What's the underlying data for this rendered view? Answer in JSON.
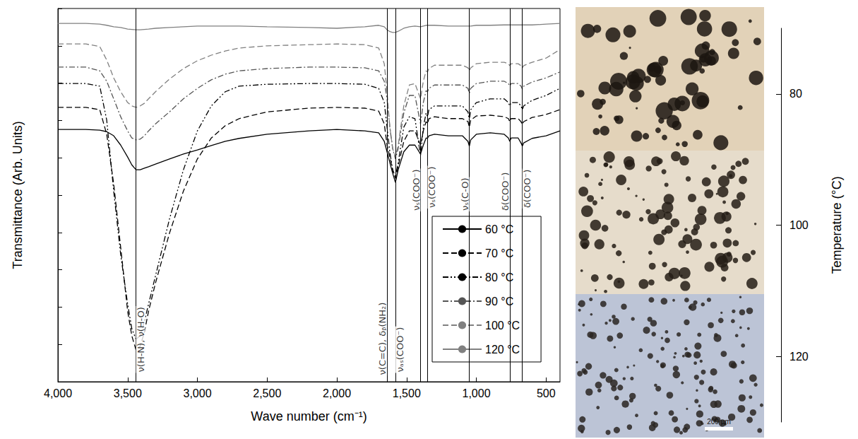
{
  "chart_data": [
    {
      "type": "line",
      "xlabel": "Wave number (cm⁻¹)",
      "ylabel": "Transmittance (Arb. Units)",
      "xlim": [
        4000,
        400
      ],
      "xticks": [
        4000,
        3500,
        3000,
        2500,
        2000,
        1500,
        1000,
        500
      ],
      "ylim": [
        0,
        100
      ],
      "yticks": [
        0,
        10,
        20,
        30,
        40,
        50,
        60,
        70,
        80,
        90,
        100
      ],
      "tick_labels": "x",
      "grid": false,
      "legend": "lower right",
      "x": [
        4000,
        3800,
        3700,
        3650,
        3600,
        3550,
        3500,
        3470,
        3440,
        3410,
        3380,
        3350,
        3300,
        3200,
        3100,
        3000,
        2900,
        2800,
        2700,
        2500,
        2200,
        2000,
        1800,
        1700,
        1660,
        1640,
        1620,
        1600,
        1580,
        1560,
        1520,
        1480,
        1440,
        1400,
        1380,
        1360,
        1350,
        1340,
        1300,
        1200,
        1100,
        1060,
        1050,
        1040,
        1000,
        900,
        800,
        770,
        760,
        750,
        700,
        680,
        670,
        660,
        600,
        500,
        400
      ],
      "series": [
        {
          "name": "60 °C",
          "color": "#000000",
          "line_style": "solid",
          "values": [
            67.6,
            67.6,
            67.4,
            67.0,
            65.9,
            63.4,
            60.2,
            58.1,
            56.8,
            56.8,
            57.2,
            57.6,
            58.3,
            59.7,
            61.0,
            62.1,
            63.3,
            64.4,
            65.2,
            66.3,
            67.2,
            67.6,
            67.2,
            66.7,
            64.4,
            61.6,
            58.7,
            55.9,
            53.4,
            56.8,
            61.6,
            63.4,
            63.4,
            61.0,
            63.4,
            65.3,
            65.2,
            65.9,
            66.3,
            65.9,
            65.9,
            64.4,
            63.1,
            64.8,
            66.3,
            66.7,
            66.3,
            65.3,
            64.4,
            65.3,
            65.3,
            64.0,
            63.1,
            64.0,
            65.2,
            65.9,
            67.2
          ]
        },
        {
          "name": "70 °C",
          "color": "#000000",
          "line_style": "dashed",
          "values": [
            73.5,
            73.5,
            72.9,
            66.3,
            53.0,
            36.0,
            18.9,
            12.3,
            8.5,
            9.5,
            13.3,
            18.9,
            26.5,
            39.8,
            51.1,
            59.7,
            65.3,
            68.6,
            70.5,
            72.3,
            73.3,
            73.5,
            73.3,
            72.5,
            69.1,
            63.4,
            60.2,
            56.8,
            54.5,
            57.8,
            64.4,
            67.2,
            67.2,
            63.4,
            67.2,
            69.7,
            69.1,
            70.5,
            71.0,
            70.5,
            70.5,
            69.7,
            68.2,
            70.1,
            71.2,
            71.4,
            71.0,
            70.5,
            69.7,
            70.5,
            70.5,
            69.7,
            68.9,
            69.7,
            70.8,
            71.6,
            72.9
          ]
        },
        {
          "name": "80 °C",
          "color": "#000000",
          "line_style": "dash-dot-dot",
          "values": [
            79.9,
            79.9,
            79.2,
            70.1,
            51.1,
            34.1,
            20.8,
            14.2,
            11.4,
            12.3,
            16.1,
            20.8,
            28.4,
            43.6,
            56.8,
            67.2,
            73.9,
            77.7,
            79.2,
            79.7,
            79.9,
            79.9,
            79.7,
            78.6,
            74.8,
            68.2,
            61.6,
            56.8,
            54.9,
            58.7,
            68.2,
            71.0,
            70.5,
            60.6,
            68.2,
            72.0,
            71.0,
            72.9,
            73.9,
            73.9,
            73.9,
            72.3,
            70.1,
            72.9,
            74.8,
            75.8,
            75.8,
            74.8,
            73.9,
            74.8,
            74.8,
            73.9,
            72.9,
            73.9,
            75.4,
            76.7,
            78.6
          ]
        },
        {
          "name": "90 °C",
          "color": "#555555",
          "line_style": "dash-dot",
          "values": [
            84.3,
            84.3,
            83.3,
            80.5,
            75.8,
            71.0,
            67.2,
            65.3,
            64.8,
            65.0,
            65.9,
            67.2,
            69.1,
            72.3,
            75.8,
            78.6,
            80.9,
            82.4,
            83.3,
            83.9,
            84.3,
            84.3,
            84.1,
            83.3,
            80.5,
            75.8,
            68.2,
            62.5,
            59.7,
            62.5,
            72.0,
            76.7,
            76.7,
            69.1,
            74.8,
            78.0,
            77.7,
            78.6,
            79.5,
            79.5,
            79.5,
            78.6,
            77.3,
            78.6,
            79.9,
            80.5,
            80.5,
            79.9,
            79.2,
            79.9,
            79.9,
            79.2,
            78.4,
            79.2,
            80.3,
            81.4,
            83.0
          ]
        },
        {
          "name": "100 °C",
          "color": "#808080",
          "line_style": "dashed",
          "values": [
            90.5,
            90.5,
            89.8,
            86.2,
            81.4,
            77.7,
            74.8,
            73.9,
            73.5,
            73.9,
            74.6,
            75.8,
            77.7,
            81.1,
            83.9,
            86.0,
            87.5,
            88.6,
            89.4,
            90.0,
            90.3,
            90.5,
            90.3,
            89.4,
            85.2,
            77.7,
            68.2,
            62.5,
            60.2,
            63.4,
            73.9,
            79.5,
            79.9,
            75.8,
            80.5,
            83.3,
            83.0,
            83.9,
            84.8,
            84.8,
            84.8,
            84.1,
            83.3,
            84.1,
            85.2,
            85.6,
            85.6,
            85.2,
            84.7,
            85.2,
            85.2,
            84.7,
            84.1,
            84.7,
            85.6,
            86.7,
            89.0
          ]
        },
        {
          "name": "120 °C",
          "color": "#808080",
          "line_style": "solid",
          "values": [
            96.0,
            96.0,
            95.8,
            95.5,
            95.1,
            94.9,
            94.5,
            94.4,
            94.3,
            94.3,
            94.4,
            94.5,
            94.7,
            94.9,
            95.1,
            95.3,
            95.3,
            95.3,
            95.3,
            95.1,
            94.9,
            94.7,
            95.1,
            95.5,
            95.1,
            94.3,
            93.8,
            93.6,
            93.6,
            93.9,
            94.7,
            95.1,
            95.3,
            95.1,
            95.3,
            95.5,
            95.5,
            95.5,
            95.5,
            95.3,
            95.3,
            95.3,
            95.3,
            95.3,
            95.5,
            95.5,
            95.6,
            95.6,
            95.6,
            95.6,
            95.6,
            95.6,
            95.6,
            95.6,
            95.6,
            95.8,
            96.0
          ]
        }
      ],
      "annotations": [
        {
          "x": 3440,
          "text": "ν(H-N), ν(H-O)"
        },
        {
          "x": 1640,
          "text": "ν(C=C), δᵦ(NH₂)"
        },
        {
          "x": 1580,
          "text": "νₐₛ(COO⁻)"
        },
        {
          "x": 1400,
          "text": "νₛ(COO⁻)"
        },
        {
          "x": 1350,
          "text": "νₛ(COO⁻)"
        },
        {
          "x": 1050,
          "text": "νₛ(C-O)"
        },
        {
          "x": 760,
          "text": "δ(COO⁻)"
        },
        {
          "x": 670,
          "text": "δ(COO⁻)"
        }
      ]
    },
    {
      "type": "image",
      "ylabel": "Temperature (°C)",
      "ylim": [
        70,
        130
      ],
      "yticks": [
        80,
        100,
        120
      ],
      "scale_bar": "200 µm"
    }
  ]
}
